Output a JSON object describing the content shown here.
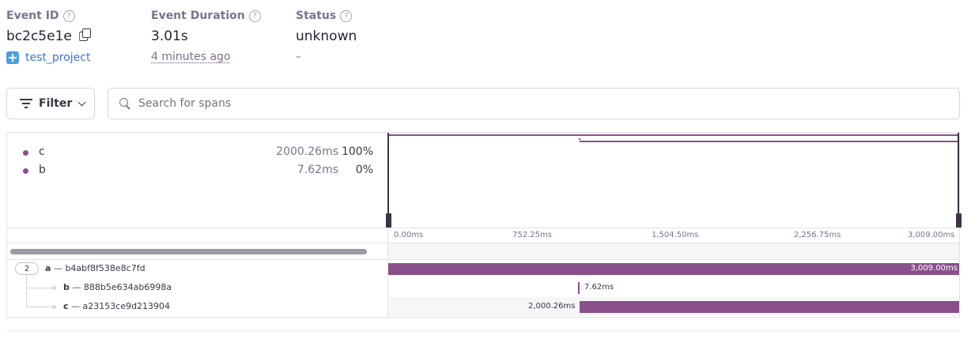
{
  "header": {
    "event_id_label": "Event ID",
    "event_id": "bc2c5e1e",
    "project": "test_project",
    "duration_label": "Event Duration",
    "duration": "3.01s",
    "time_ago": "4 minutes ago",
    "status_label": "Status",
    "status": "unknown",
    "status_sub": "–",
    "help_glyph": "?"
  },
  "toolbar": {
    "filter_label": "Filter",
    "search_placeholder": "Search for spans"
  },
  "ops": [
    {
      "name": "c",
      "duration": "2000.26ms",
      "percent": "100%"
    },
    {
      "name": "b",
      "duration": "7.62ms",
      "percent": "0%"
    }
  ],
  "axis_ticks": [
    "0.00ms",
    "752.25ms",
    "1,504.50ms",
    "2,256.75ms",
    "3,009.00ms"
  ],
  "spans": [
    {
      "op": "a",
      "sep": "—",
      "id": "b4abf8f538e8c7fd",
      "children": "2",
      "duration": "3,009.00ms"
    },
    {
      "op": "b",
      "sep": "—",
      "id": "888b5e634ab6998a",
      "duration": "7.62ms"
    },
    {
      "op": "c",
      "sep": "—",
      "id": "a23153ce9d213904",
      "duration": "2,000.26ms"
    }
  ],
  "colors": {
    "accent": "#89508c",
    "link": "#3d74db"
  }
}
